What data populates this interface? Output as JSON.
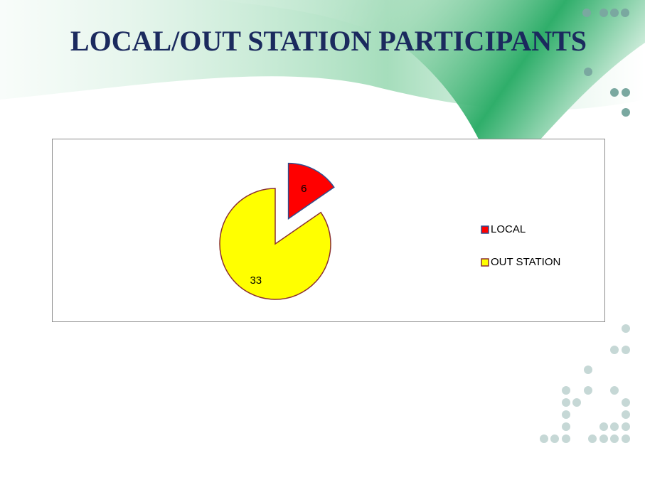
{
  "chart_data": {
    "type": "pie",
    "title": "LOCAL/OUT STATION PARTICIPANTS",
    "categories": [
      "LOCAL",
      "OUT STATION"
    ],
    "values": [
      6,
      33
    ],
    "colors": [
      "#ff0000",
      "#ffff00"
    ],
    "explode": [
      true,
      false
    ],
    "legend": "right"
  }
}
